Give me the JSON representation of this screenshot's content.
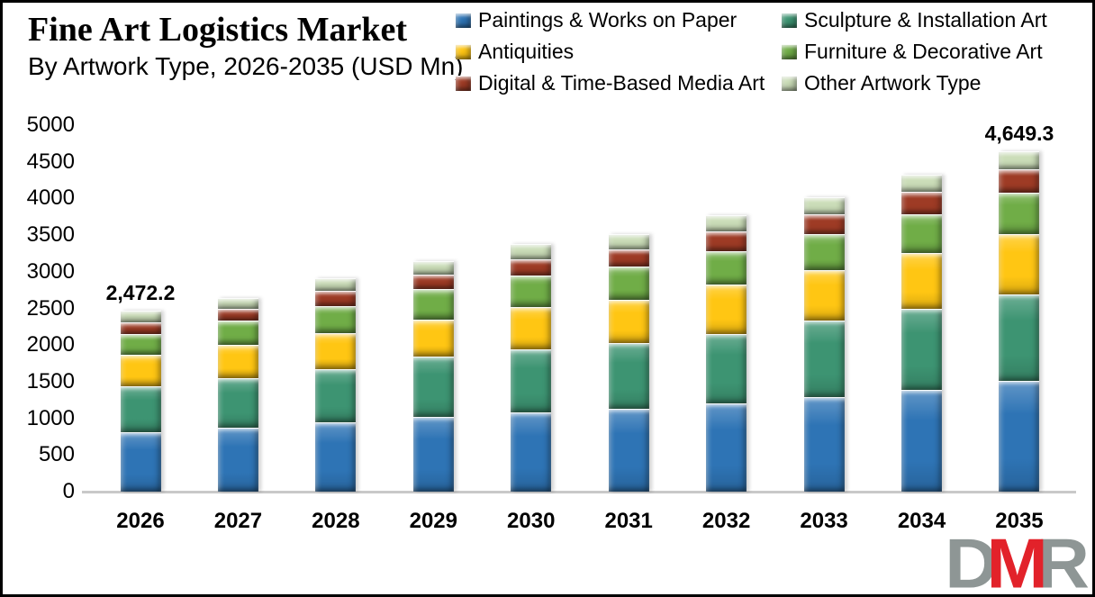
{
  "header": {
    "title": "Fine Art Logistics Market",
    "subtitle": "By Artwork Type, 2026-2035 (USD Mn)"
  },
  "legend": {
    "items": [
      {
        "label": "Paintings & Works on Paper",
        "color": "#2E74B5"
      },
      {
        "label": "Sculpture & Installation Art",
        "color": "#3D9472"
      },
      {
        "label": "Antiquities",
        "color": "#FFC613"
      },
      {
        "label": "Furniture & Decorative Art",
        "color": "#70AD47"
      },
      {
        "label": "Digital & Time-Based Media Art",
        "color": "#9E3B25"
      },
      {
        "label": "Other Artwork Type",
        "color": "#CBDDB8"
      }
    ]
  },
  "chart_data": {
    "type": "bar",
    "stacked": true,
    "title": "Fine Art Logistics Market",
    "subtitle": "By Artwork Type, 2026-2035 (USD Mn)",
    "unit": "USD Mn",
    "categories": [
      "2026",
      "2027",
      "2028",
      "2029",
      "2030",
      "2031",
      "2032",
      "2033",
      "2034",
      "2035"
    ],
    "series": [
      {
        "name": "Paintings & Works on Paper",
        "color": "#2E74B5",
        "values": [
          805,
          870,
          940,
          1020,
          1080,
          1125,
          1205,
          1290,
          1390,
          1505
        ]
      },
      {
        "name": "Sculpture & Installation Art",
        "color": "#3D9472",
        "values": [
          635,
          675,
          735,
          820,
          860,
          900,
          945,
          1040,
          1105,
          1190
        ]
      },
      {
        "name": "Antiquities",
        "color": "#FFC613",
        "values": [
          430,
          455,
          490,
          510,
          575,
          595,
          670,
          695,
          760,
          815
        ]
      },
      {
        "name": "Furniture & Decorative Art",
        "color": "#70AD47",
        "values": [
          285,
          330,
          370,
          410,
          430,
          450,
          460,
          490,
          530,
          570
        ]
      },
      {
        "name": "Digital & Time-Based Media Art",
        "color": "#9E3B25",
        "values": [
          160,
          165,
          205,
          205,
          225,
          240,
          265,
          275,
          310,
          318
        ]
      },
      {
        "name": "Other Artwork Type",
        "color": "#CBDDB8",
        "values": [
          157.2,
          145,
          170,
          185,
          205,
          205,
          225,
          230,
          225,
          251.3
        ]
      }
    ],
    "totals": [
      2472.2,
      2640,
      2910,
      3150,
      3375,
      3515,
      3770,
      4020,
      4320,
      4649.3
    ],
    "point_labels": [
      {
        "category": "2026",
        "text": "2,472.2"
      },
      {
        "category": "2035",
        "text": "4,649.3"
      }
    ],
    "ylim": [
      0,
      5000
    ],
    "yticks": [
      0,
      500,
      1000,
      1500,
      2000,
      2500,
      3000,
      3500,
      4000,
      4500,
      5000
    ],
    "ytick_labels": [
      "0",
      "500",
      "1000",
      "1500",
      "2000",
      "2500",
      "3000",
      "3500",
      "4000",
      "4500",
      "5000"
    ],
    "grid": false,
    "legend_position": "top-right"
  },
  "logo": {
    "letters": [
      {
        "char": "D",
        "color": "#8E9695"
      },
      {
        "char": "M",
        "color": "#E2222A"
      },
      {
        "char": "R",
        "color": "#8E9695"
      }
    ]
  }
}
